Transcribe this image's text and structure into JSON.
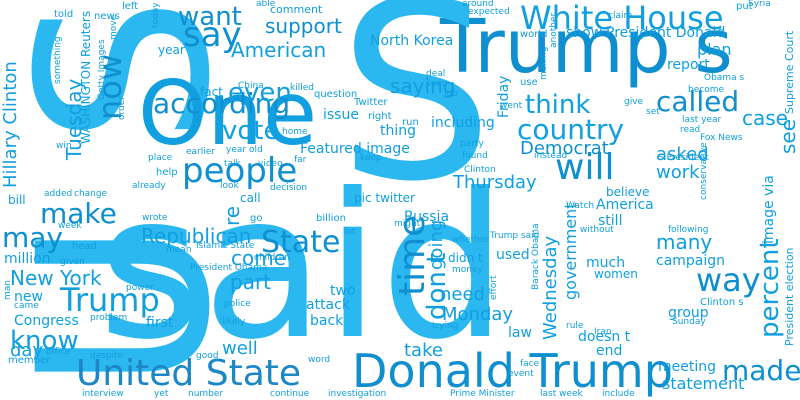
{
  "words": {
    "us": "U S",
    "said": "said",
    "one": "One",
    "trumps": "Trump s",
    "white_house": "White House",
    "people": "people",
    "according": "according",
    "country": "country",
    "say": "say",
    "want": "want",
    "now": "now",
    "will": "will",
    "called": "called",
    "time": "time",
    "trump": "Trump",
    "donald_trump": "Donald Trump",
    "united_state": "United State",
    "state": "State",
    "make": "make",
    "may": "may",
    "new_york": "New York",
    "know": "know",
    "vote": "vote",
    "even": "even",
    "american": "American",
    "support": "support",
    "think": "think",
    "dont": "don t",
    "way": "way",
    "percent": "percent",
    "made": "made",
    "see": "see",
    "case": "case",
    "tuesday": "Tuesday",
    "hillary": "Hillary Clinton",
    "democrat": "Democrat",
    "republican": "Republican",
    "thursday": "Thursday",
    "monday": "Monday",
    "wednesday": "Wednesday",
    "government": "government",
    "going": "going",
    "need": "need",
    "take": "take",
    "part": "part",
    "come": "come",
    "well": "well",
    "work": "work",
    "asked": "asked",
    "many": "many",
    "day": "day",
    "statement": "statement",
    "saying": "saying",
    "featured_image": "Featured image",
    "north_korea": "North Korea",
    "president_donald": "President Donald",
    "plan": "plan",
    "report": "report",
    "image_via": "image via",
    "supreme_court": "Supreme Court",
    "president_election": "President election",
    "campaign": "campaign",
    "group": "group",
    "russia": "Russia",
    "congress": "Congress",
    "attack": "attack",
    "back": "back",
    "two": "two",
    "first": "first",
    "friday": "Friday",
    "show": "show",
    "issue": "issue",
    "thing": "thing",
    "including": "including",
    "million": "million",
    "america": "America",
    "still": "still",
    "believe": "believe",
    "much": "much",
    "used": "used",
    "didnt": "didn t",
    "meeting": "meeting",
    "end": "end",
    "doesnt": "doesn t",
    "law": "law",
    "women": "women",
    "pic_twitter": "pic twitter",
    "washington_reuters": "WASHINGTON Reuters",
    "year": "year",
    "fact": "fact",
    "comment": "comment",
    "told": "told",
    "news": "news",
    "today": "today",
    "left": "left",
    "able": "able",
    "around": "around",
    "put": "put",
    "syria": "Syria",
    "expected": "expected",
    "claim": "claim",
    "world": "world",
    "another": "another",
    "twitter": "Twitter",
    "question": "question",
    "right": "right",
    "run": "run",
    "deal": "deal",
    "seen": "seen",
    "job": "job",
    "party": "party",
    "found": "found",
    "instead": "instead",
    "clinton": "Clinton",
    "earlier": "earlier",
    "year_old": "year old",
    "help": "help",
    "place": "place",
    "far": "far",
    "keep": "keep",
    "call": "call",
    "decision": "decision",
    "look": "look",
    "already": "already",
    "added": "added",
    "change": "change",
    "bill": "bill",
    "week": "week",
    "head": "head",
    "wrote": "wrote",
    "go": "go",
    "billion": "billion",
    "lot": "lot",
    "might": "might",
    "islamic_state": "Islamic State",
    "mean": "mean",
    "given": "given",
    "children": "children",
    "trump_said": "Trump said",
    "whether": "whether",
    "money": "money",
    "president_obama": "President Obama",
    "barack_obama": "Barack Obama",
    "watch": "Watch",
    "without": "without",
    "following": "following",
    "clintons": "Clinton s",
    "sunday": "Sunday",
    "power": "power",
    "police": "police",
    "likely": "likely",
    "problem": "problem",
    "office": "office",
    "despite": "despite",
    "good": "good",
    "word": "word",
    "member": "member",
    "interview": "interview",
    "number": "number",
    "continue": "continue",
    "investigation": "investigation",
    "prime_minister": "Prime Minister",
    "face": "face",
    "event": "event",
    "trying": "trying",
    "include": "include",
    "rule": "rule",
    "iran": "Iran",
    "effort": "effort",
    "last_week": "last week",
    "yet": "yet",
    "talk": "talk",
    "video": "video",
    "fox_news": "Fox News",
    "last_year": "last year",
    "read": "read",
    "give": "give",
    "set": "set",
    "become": "become",
    "obamas": "Obama s",
    "presidents": "S President",
    "went": "went",
    "use": "use",
    "making": "making",
    "conservative": "conservative",
    "something": "something",
    "getty_images": "Getty Images",
    "move": "move",
    "order": "order",
    "win": "win",
    "home": "home",
    "china": "China",
    "killed": "killed",
    "came": "came",
    "man": "man",
    "re": "re"
  },
  "colors": [
    "#119fdf",
    "#0f8fd0",
    "#17b2ee",
    "#2bb7f0",
    "#1d86c4"
  ]
}
